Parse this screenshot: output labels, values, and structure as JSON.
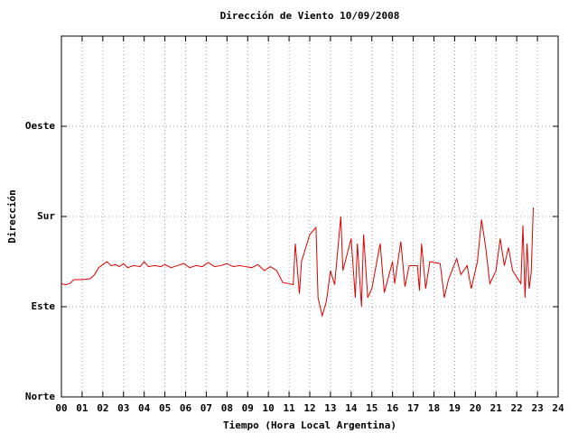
{
  "chart_data": {
    "type": "line",
    "title": "Dirección de Viento 10/09/2008",
    "x_label": "Tiempo (Hora Local Argentina)",
    "y_label": "Dirección",
    "x": [
      0.0,
      0.2,
      0.4,
      0.6,
      1.0,
      1.4,
      1.6,
      1.8,
      2.0,
      2.2,
      2.4,
      2.6,
      2.8,
      3.0,
      3.2,
      3.5,
      3.8,
      4.0,
      4.2,
      4.5,
      4.8,
      5.0,
      5.3,
      5.6,
      5.9,
      6.2,
      6.5,
      6.8,
      7.1,
      7.4,
      7.7,
      8.0,
      8.3,
      8.6,
      8.9,
      9.2,
      9.5,
      9.8,
      10.1,
      10.4,
      10.7,
      11.0,
      11.2,
      11.3,
      11.5,
      11.6,
      12.0,
      12.3,
      12.4,
      12.6,
      12.8,
      13.0,
      13.2,
      13.5,
      13.6,
      14.0,
      14.2,
      14.3,
      14.5,
      14.6,
      14.8,
      15.0,
      15.4,
      15.6,
      16.0,
      16.1,
      16.4,
      16.6,
      16.8,
      17.2,
      17.3,
      17.4,
      17.6,
      17.8,
      18.3,
      18.5,
      18.7,
      19.1,
      19.3,
      19.6,
      19.8,
      20.1,
      20.3,
      20.5,
      20.7,
      21.0,
      21.2,
      21.4,
      21.6,
      21.8,
      22.2,
      22.3,
      22.4,
      22.5,
      22.6,
      22.7,
      22.8
    ],
    "series": [
      {
        "name": "Dirección",
        "color": "#dd0000",
        "values": [
          113,
          112,
          113,
          117,
          117,
          118,
          122,
          129,
          132,
          135,
          131,
          132,
          130,
          133,
          129,
          131,
          130,
          135,
          130,
          131,
          130,
          132,
          129,
          131,
          133,
          129,
          131,
          130,
          134,
          130,
          131,
          133,
          130,
          131,
          130,
          129,
          132,
          126,
          130,
          126,
          114,
          113,
          112,
          153,
          103,
          135,
          162,
          169,
          99,
          81,
          95,
          126,
          112,
          180,
          126,
          158,
          99,
          153,
          90,
          162,
          99,
          108,
          153,
          104,
          135,
          113,
          155,
          110,
          131,
          131,
          106,
          153,
          108,
          135,
          133,
          99,
          117,
          138,
          122,
          131,
          108,
          135,
          177,
          149,
          113,
          126,
          158,
          131,
          149,
          126,
          113,
          171,
          99,
          153,
          108,
          124,
          189
        ]
      }
    ],
    "xlim": [
      0,
      24
    ],
    "xticks": [
      {
        "value": 0,
        "label": "00"
      },
      {
        "value": 1,
        "label": "01"
      },
      {
        "value": 2,
        "label": "02"
      },
      {
        "value": 3,
        "label": "03"
      },
      {
        "value": 4,
        "label": "04"
      },
      {
        "value": 5,
        "label": "05"
      },
      {
        "value": 6,
        "label": "06"
      },
      {
        "value": 7,
        "label": "07"
      },
      {
        "value": 8,
        "label": "08"
      },
      {
        "value": 9,
        "label": "09"
      },
      10,
      11,
      12,
      13,
      14,
      15,
      16,
      17,
      18,
      19,
      20,
      21,
      22,
      23,
      24
    ],
    "ylim": [
      0,
      360
    ],
    "yticks": [
      {
        "value": 0,
        "label": "Norte"
      },
      {
        "value": 90,
        "label": "Este"
      },
      {
        "value": 180,
        "label": "Sur"
      },
      {
        "value": 270,
        "label": "Oeste"
      }
    ],
    "grid": true
  }
}
